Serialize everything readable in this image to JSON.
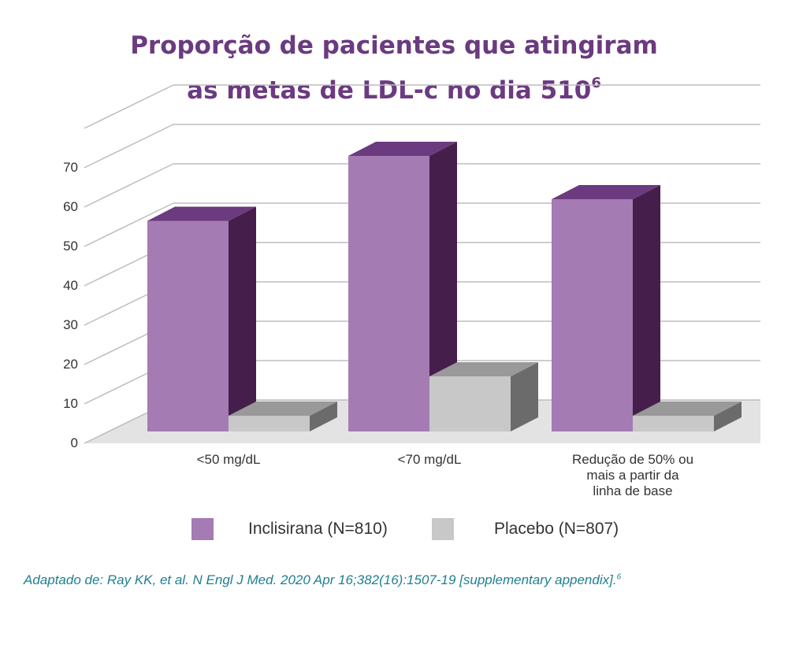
{
  "title": {
    "line1": "Proporção de pacientes que atingiram",
    "line2": "as metas de LDL-c no dia 510",
    "superscript": "6"
  },
  "chart_data": {
    "type": "bar",
    "style": "3d-clustered",
    "categories": [
      "<50 mg/dL",
      "<70 mg/dL",
      "Redução de 50% ou mais a partir da linha de base"
    ],
    "category_lines": [
      [
        "<50 mg/dL"
      ],
      [
        "<70 mg/dL"
      ],
      [
        "Redução de 50% ou",
        "mais a partir da",
        "linha de base"
      ]
    ],
    "series": [
      {
        "name": "Inclisirana (N=810)",
        "values": [
          53.5,
          70,
          59
        ],
        "color": "#a57bb3",
        "side_color": "#461e4b",
        "top_color": "#6c3a7e"
      },
      {
        "name": "Placebo (N=807)",
        "values": [
          4,
          14,
          4
        ],
        "color": "#c8c8c8",
        "side_color": "#6b6b6b",
        "top_color": "#999999"
      }
    ],
    "yticks": [
      0,
      10,
      20,
      30,
      40,
      50,
      60,
      70
    ],
    "ylim": [
      0,
      80
    ],
    "xlabel": "",
    "ylabel": "",
    "grid": true,
    "legend_position": "bottom"
  },
  "source": {
    "text": "Adaptado de: Ray KK, et al. N Engl J Med. 2020 Apr 16;382(16):1507-19 [supplementary appendix].",
    "superscript": "6"
  }
}
